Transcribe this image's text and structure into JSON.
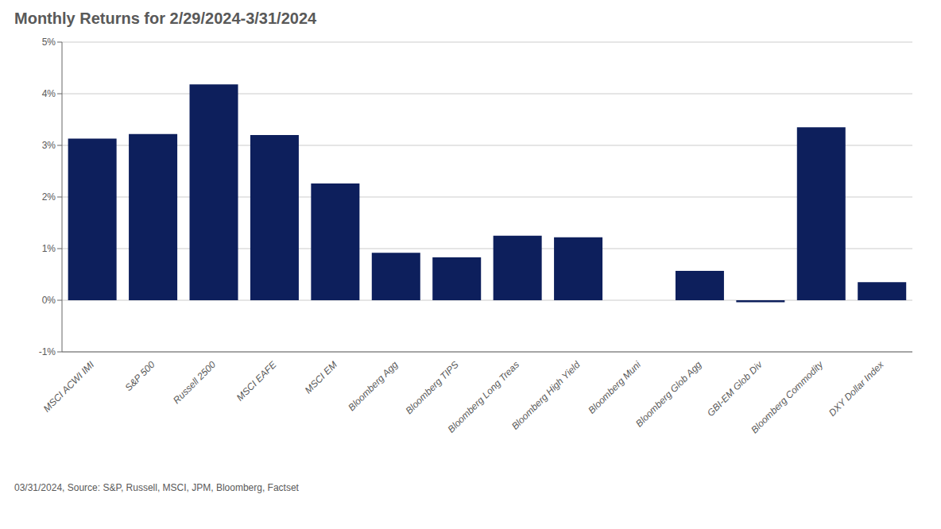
{
  "chart_data": {
    "type": "bar",
    "title": "Monthly Returns for 2/29/2024-3/31/2024",
    "categories": [
      "MSCI ACWI IMI",
      "S&P 500",
      "Russell 2500",
      "MSCI EAFE",
      "MSCI EM",
      "Bloomberg Agg",
      "Bloomberg TIPS",
      "Bloomberg Long Treas",
      "Bloomberg High Yield",
      "Bloomberg Muni",
      "Bloomberg Glob Agg",
      "GBI-EM Glob Div",
      "Bloomberg Commodity",
      "DXY Dollar Index"
    ],
    "values": [
      3.13,
      3.22,
      4.18,
      3.2,
      2.26,
      0.92,
      0.83,
      1.25,
      1.22,
      0.0,
      0.57,
      -0.04,
      3.35,
      0.35
    ],
    "color": "#0d1f5c",
    "ylim": [
      -1,
      5
    ],
    "yticks": [
      {
        "value": -1,
        "label": "-1%"
      },
      {
        "value": 0,
        "label": "0%"
      },
      {
        "value": 1,
        "label": "1%"
      },
      {
        "value": 2,
        "label": "2%"
      },
      {
        "value": 3,
        "label": "3%"
      },
      {
        "value": 4,
        "label": "4%"
      },
      {
        "value": 5,
        "label": "5%"
      }
    ],
    "grid": true,
    "annotations": [
      "03/31/2024, Source: S&P, Russell, MSCI, JPM, Bloomberg, Factset"
    ]
  }
}
